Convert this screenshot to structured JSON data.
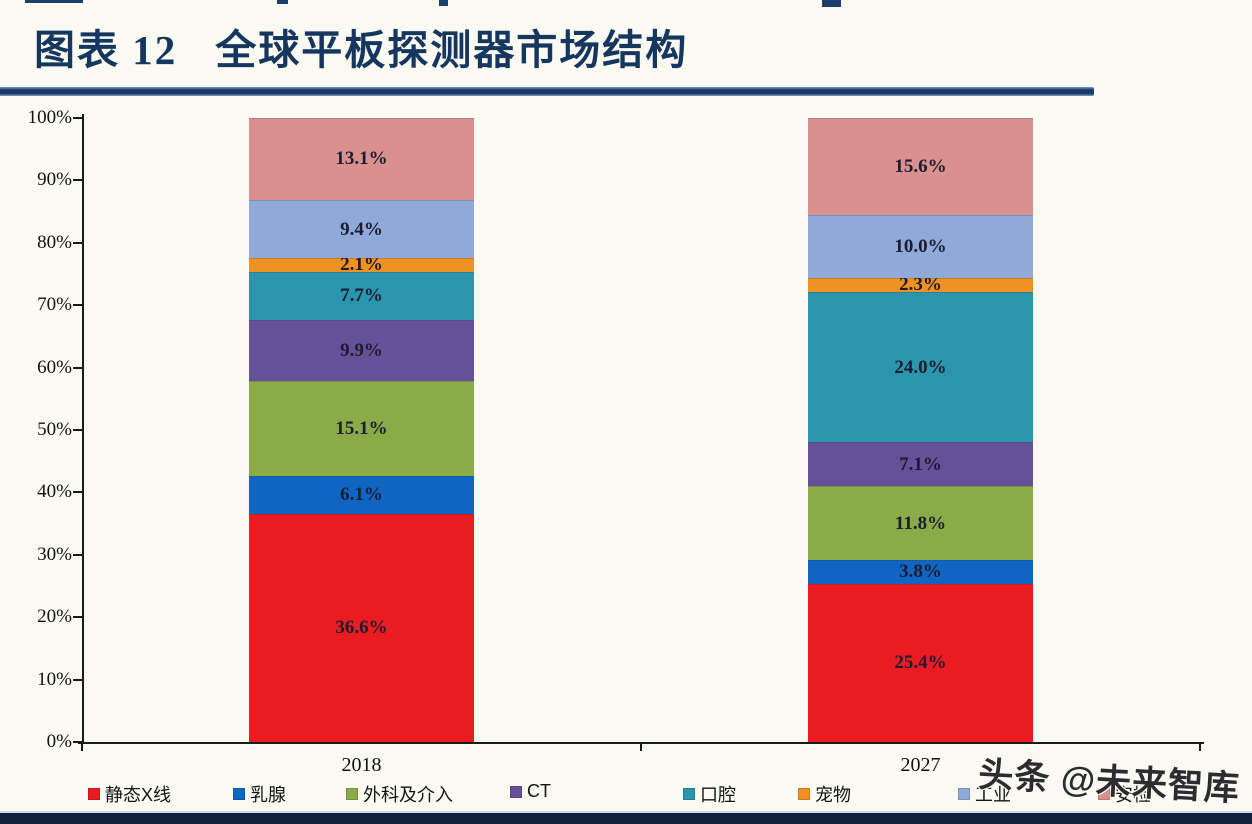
{
  "page": {
    "title_prefix": "图表 12",
    "title_text": "全球平板探测器市场结构",
    "watermark": "头条 @未来智库"
  },
  "chart_data": {
    "type": "bar",
    "subtype": "stacked-percentage-column",
    "title": "全球平板探测器市场结构",
    "unit": "%",
    "categories": [
      "2018",
      "2027"
    ],
    "series": [
      {
        "name": "静态X线",
        "color": "#ea1c22",
        "values": [
          36.6,
          25.4
        ]
      },
      {
        "name": "乳腺",
        "color": "#1165c2",
        "values": [
          6.1,
          3.8
        ]
      },
      {
        "name": "外科及介入",
        "color": "#8bab49",
        "values": [
          15.1,
          11.8
        ]
      },
      {
        "name": "CT",
        "color": "#645197",
        "values": [
          9.9,
          7.1
        ]
      },
      {
        "name": "口腔",
        "color": "#2b95ad",
        "values": [
          7.7,
          24.0
        ]
      },
      {
        "name": "宠物",
        "color": "#ef9221",
        "values": [
          2.1,
          2.3
        ]
      },
      {
        "name": "工业",
        "color": "#8fa9d9",
        "values": [
          9.4,
          10.0
        ]
      },
      {
        "name": "安检",
        "color": "#d9908f",
        "values": [
          13.1,
          15.6
        ]
      }
    ],
    "y_axis": {
      "min": 0,
      "max": 100,
      "step": 10,
      "tick_labels": [
        "0%",
        "10%",
        "20%",
        "30%",
        "40%",
        "50%",
        "60%",
        "70%",
        "80%",
        "90%",
        "100%"
      ]
    },
    "grid": false,
    "legend_position": "bottom",
    "value_labels": "percent value shown inside each segment"
  }
}
